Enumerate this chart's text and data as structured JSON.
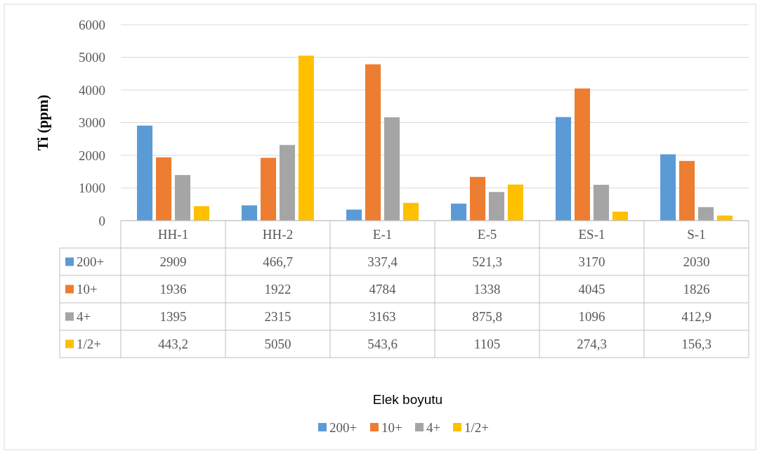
{
  "chart_data": {
    "type": "bar",
    "annotations": [
      "Elek boyutu"
    ],
    "ylabel": "Ti (ppm)",
    "categories": [
      "HH-1",
      "HH-2",
      "E-1",
      "E-5",
      "ES-1",
      "S-1"
    ],
    "series": [
      {
        "name": "200+",
        "color": "#5b9bd5",
        "values": [
          2909,
          466.7,
          337.4,
          521.3,
          3170,
          2030
        ],
        "value_labels": [
          "2909",
          "466,7",
          "337,4",
          "521,3",
          "3170",
          "2030"
        ]
      },
      {
        "name": "10+",
        "color": "#ed7d31",
        "values": [
          1936,
          1922,
          4784,
          1338,
          4045,
          1826
        ],
        "value_labels": [
          "1936",
          "1922",
          "4784",
          "1338",
          "4045",
          "1826"
        ]
      },
      {
        "name": "4+",
        "color": "#a5a5a5",
        "values": [
          1395,
          2315,
          3163,
          875.8,
          1096,
          412.9
        ],
        "value_labels": [
          "1395",
          "2315",
          "3163",
          "875,8",
          "1096",
          "412,9"
        ]
      },
      {
        "name": "1/2+",
        "color": "#ffc000",
        "values": [
          443.2,
          5050,
          543.6,
          1105,
          274.3,
          156.3
        ],
        "value_labels": [
          "443,2",
          "5050",
          "543,6",
          "1105",
          "274,3",
          "156,3"
        ]
      }
    ],
    "ylim": [
      0,
      6000
    ],
    "yticks": [
      0,
      1000,
      2000,
      3000,
      4000,
      5000,
      6000
    ],
    "grid": "y",
    "legend": "bottom"
  }
}
